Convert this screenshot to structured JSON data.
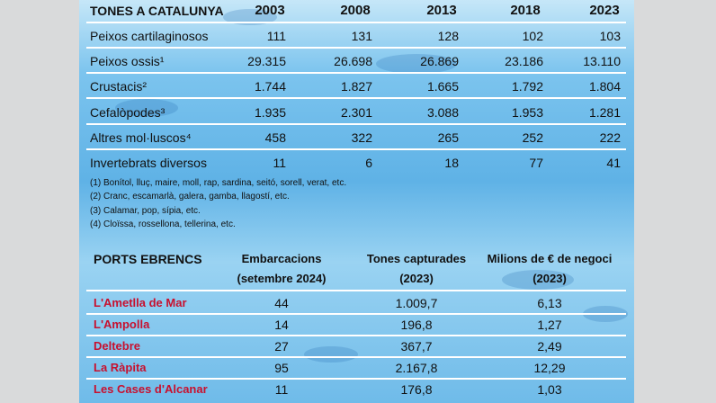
{
  "table1": {
    "header": [
      "TONES A CATALUNYA",
      "2003",
      "2008",
      "2013",
      "2018",
      "2023"
    ],
    "rows": [
      [
        "Peixos cartilaginosos",
        "111",
        "131",
        "128",
        "102",
        "103"
      ],
      [
        "Peixos ossis¹",
        "29.315",
        "26.698",
        "26.869",
        "23.186",
        "13.110"
      ],
      [
        "Crustacis²",
        "1.744",
        "1.827",
        "1.665",
        "1.792",
        "1.804"
      ],
      [
        "Cefalòpodes³",
        "1.935",
        "2.301",
        "3.088",
        "1.953",
        "1.281"
      ],
      [
        "Altres mol·luscos⁴",
        "458",
        "322",
        "265",
        "252",
        "222"
      ],
      [
        "Invertebrats diversos",
        "11",
        "6",
        "18",
        "77",
        "41"
      ]
    ],
    "footnotes": [
      "(1) Bonítol, lluç, maire, moll, rap, sardina, seitó, sorell, verat, etc.",
      "(2) Cranc, escamarlà, galera, gamba, llagostí, etc.",
      "(3) Calamar, pop, sípia, etc.",
      "(4) Cloïssa, rossellona, tellerina, etc."
    ]
  },
  "table2": {
    "title": "PORTS EBRENCS",
    "columns": [
      {
        "line1": "Embarcacions",
        "line2": "(setembre 2024)"
      },
      {
        "line1": "Tones capturades",
        "line2": "(2023)"
      },
      {
        "line1": "Milions de € de negoci",
        "line2": "(2023)"
      }
    ],
    "rows": [
      [
        "L'Ametlla de Mar",
        "44",
        "1.009,7",
        "6,13"
      ],
      [
        "L'Ampolla",
        "14",
        "196,8",
        "1,27"
      ],
      [
        "Deltebre",
        "27",
        "367,7",
        "2,49"
      ],
      [
        "La Ràpita",
        "95",
        "2.167,8",
        "12,29"
      ],
      [
        "Les Cases d'Alcanar",
        "11",
        "176,8",
        "1,03"
      ]
    ]
  }
}
